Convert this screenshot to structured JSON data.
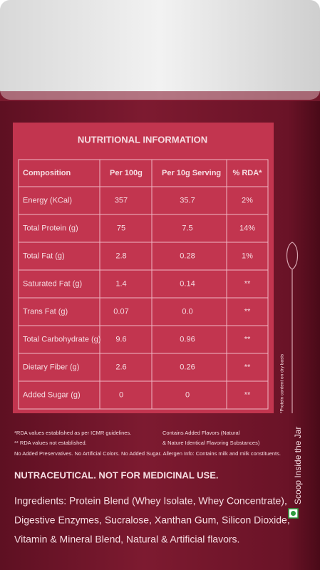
{
  "table": {
    "title": "NUTRITIONAL INFORMATION",
    "header": [
      "Composition",
      "Per 100g",
      "Per 10g Serving",
      "% RDA*"
    ],
    "rows": [
      [
        "Energy (KCal)",
        "357",
        "35.7",
        "2%"
      ],
      [
        "Total Protein (g)",
        "75",
        "7.5",
        "14%"
      ],
      [
        "Total Fat (g)",
        "2.8",
        "0.28",
        "1%"
      ],
      [
        "Saturated Fat (g)",
        "1.4",
        "0.14",
        "**"
      ],
      [
        "Trans Fat (g)",
        "0.07",
        "0.0",
        "**"
      ],
      [
        "Total Carbohydrate (g)",
        "9.6",
        "0.96",
        "**"
      ],
      [
        "Dietary Fiber (g)",
        "2.6",
        "0.26",
        "**"
      ],
      [
        "Added Sugar (g)",
        "0",
        "0",
        "**"
      ]
    ]
  },
  "footnotes": [
    "*RDA values established as per ICMR guidelines.",
    "** RDA values not established."
  ],
  "flavors": [
    "Contains Added Flavors (Natural",
    "& Nature Identical Flavoring Substances)"
  ],
  "allergen_note": "No Added Preservatives. No Artificial Colors. No Added Sugar. Allergen Info: Contains milk and milk constituents.",
  "protein_note": "*Protein content on dry basis",
  "scoop_note": "Scoop Inside the Jar",
  "disclaimer": "NUTRACEUTICAL. NOT FOR MEDICINAL USE.",
  "ingredients": [
    "Ingredients: Protein Blend (Whey Isolate, Whey Concentrate),",
    "Digestive Enzymes, Sucralose, Xanthan Gum, Silicon Dioxide,",
    "Vitamin & Mineral Blend, Natural & Artificial flavors."
  ]
}
